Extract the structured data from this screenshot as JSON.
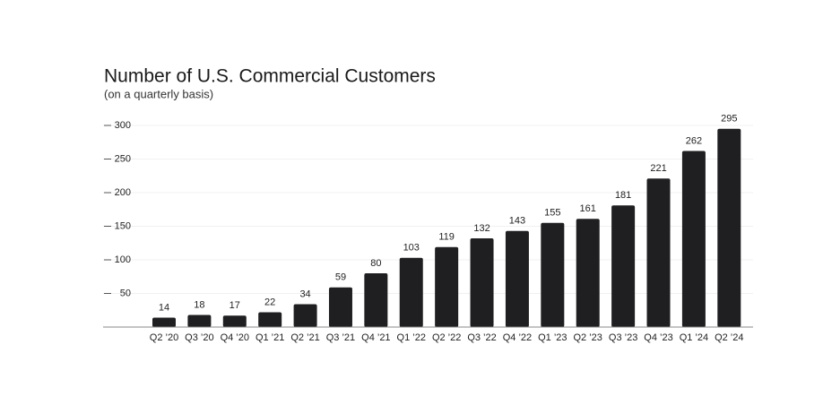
{
  "chart_data": {
    "type": "bar",
    "title": "Number of U.S. Commercial Customers",
    "subtitle": "(on a quarterly basis)",
    "categories": [
      "Q2 ’20",
      "Q3 ’20",
      "Q4 ’20",
      "Q1 ’21",
      "Q2 ’21",
      "Q3 ’21",
      "Q4 ’21",
      "Q1 ’22",
      "Q2 ’22",
      "Q3 ’22",
      "Q4 ’22",
      "Q1 ’23",
      "Q2 ’23",
      "Q3 ’23",
      "Q4 ’23",
      "Q1 ’24",
      "Q2 ’24"
    ],
    "values": [
      14,
      18,
      17,
      22,
      34,
      59,
      80,
      103,
      119,
      132,
      143,
      155,
      161,
      181,
      221,
      262,
      295
    ],
    "color": "#1f1f21",
    "ylim": [
      0,
      300
    ],
    "yticks": [
      50,
      100,
      150,
      200,
      250,
      300
    ],
    "grid": true
  }
}
